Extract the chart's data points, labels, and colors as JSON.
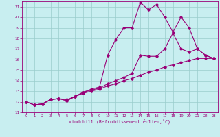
{
  "xlabel": "Windchill (Refroidissement éolien,°C)",
  "bg_color": "#c8eef0",
  "grid_color": "#99cccc",
  "line_color": "#990077",
  "xlim": [
    -0.5,
    23.5
  ],
  "ylim": [
    11,
    21.5
  ],
  "xticks": [
    0,
    1,
    2,
    3,
    4,
    5,
    6,
    7,
    8,
    9,
    10,
    11,
    12,
    13,
    14,
    15,
    16,
    17,
    18,
    19,
    20,
    21,
    22,
    23
  ],
  "yticks": [
    11,
    12,
    13,
    14,
    15,
    16,
    17,
    18,
    19,
    20,
    21
  ],
  "line1_x": [
    0,
    1,
    2,
    3,
    4,
    5,
    6,
    7,
    8,
    9,
    10,
    11,
    12,
    13,
    14,
    15,
    16,
    17,
    18,
    19,
    20,
    21,
    22,
    23
  ],
  "line1_y": [
    12.0,
    11.7,
    11.8,
    12.2,
    12.3,
    12.2,
    12.5,
    12.8,
    13.0,
    13.2,
    13.5,
    13.7,
    14.0,
    14.2,
    14.5,
    14.8,
    15.0,
    15.3,
    15.5,
    15.7,
    15.9,
    16.1,
    16.1,
    16.1
  ],
  "line2_x": [
    0,
    1,
    2,
    3,
    4,
    5,
    6,
    7,
    8,
    9,
    10,
    11,
    12,
    13,
    14,
    15,
    16,
    17,
    18,
    19,
    20,
    21,
    22,
    23
  ],
  "line2_y": [
    12.0,
    11.7,
    11.8,
    12.2,
    12.3,
    12.1,
    12.5,
    12.9,
    13.1,
    13.3,
    13.7,
    14.0,
    14.3,
    14.7,
    16.4,
    16.3,
    16.3,
    17.0,
    18.5,
    17.0,
    16.7,
    17.0,
    16.4,
    16.1
  ],
  "line3_x": [
    0,
    1,
    2,
    3,
    4,
    5,
    6,
    7,
    8,
    9,
    10,
    11,
    12,
    13,
    14,
    15,
    16,
    17,
    18,
    19,
    20,
    21,
    22,
    23
  ],
  "line3_y": [
    12.0,
    11.7,
    11.8,
    12.2,
    12.3,
    12.1,
    12.5,
    12.9,
    13.2,
    13.4,
    16.4,
    17.9,
    19.0,
    19.0,
    21.4,
    20.7,
    21.2,
    20.0,
    18.6,
    20.0,
    19.0,
    17.0,
    16.4,
    16.1
  ]
}
